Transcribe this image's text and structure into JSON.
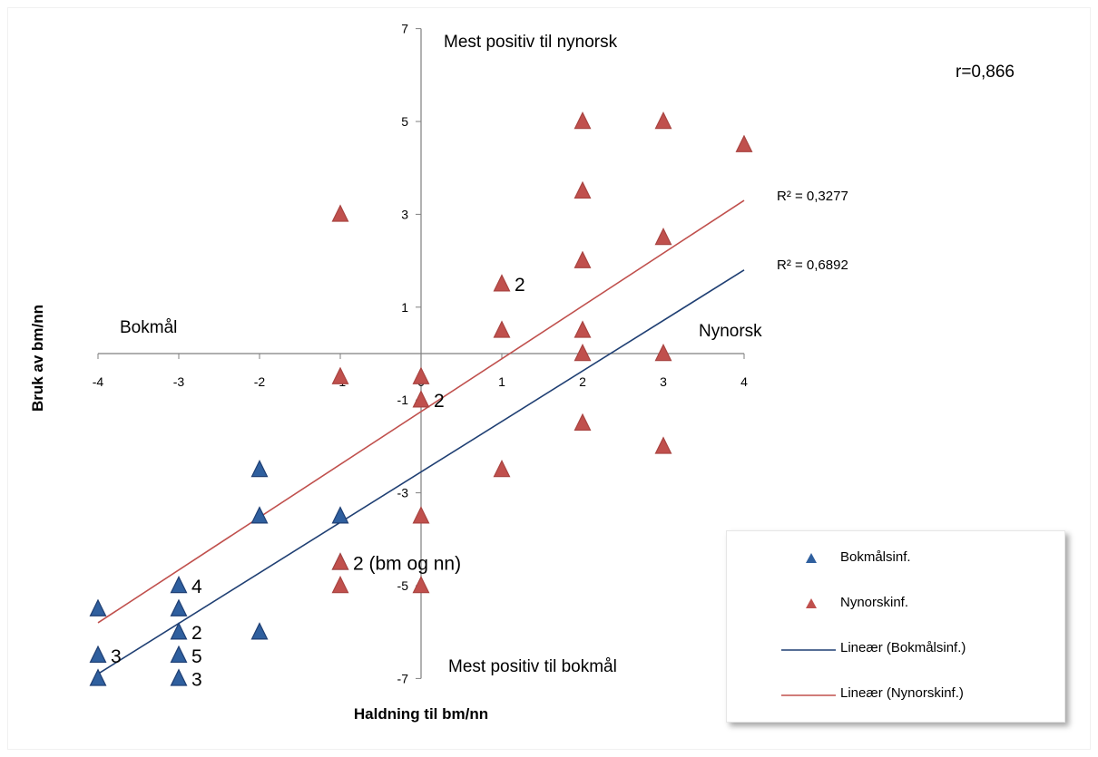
{
  "chart_data": {
    "type": "scatter",
    "title": "",
    "xlabel": "Haldning til bm/nn",
    "ylabel": "Bruk av bm/nn",
    "xlim": [
      -4,
      4
    ],
    "ylim": [
      -7,
      7
    ],
    "xticks": [
      -4,
      -3,
      -2,
      -1,
      0,
      1,
      2,
      3,
      4
    ],
    "yticks": [
      -7,
      -5,
      -3,
      -1,
      1,
      3,
      5,
      7
    ],
    "grid": false,
    "legend_position": "bottom-right",
    "annotation_r": "r=0,866",
    "quadrant_labels": {
      "top": "Mest positiv til nynorsk",
      "bottom": "Mest positiv til bokmål",
      "left": "Bokmål",
      "right": "Nynorsk"
    },
    "series": [
      {
        "name": "Bokmålsinf.",
        "color": "#2f5f9e",
        "points": [
          {
            "x": -4,
            "y": -5.5
          },
          {
            "x": -4,
            "y": -6.5
          },
          {
            "x": -4,
            "y": -7
          },
          {
            "x": -3,
            "y": -5
          },
          {
            "x": -3,
            "y": -5.5
          },
          {
            "x": -3,
            "y": -6
          },
          {
            "x": -3,
            "y": -6.5
          },
          {
            "x": -3,
            "y": -7
          },
          {
            "x": -2,
            "y": -2.5
          },
          {
            "x": -2,
            "y": -3.5
          },
          {
            "x": -2,
            "y": -6
          },
          {
            "x": -1,
            "y": -3.5
          },
          {
            "x": -1,
            "y": -4.5
          }
        ]
      },
      {
        "name": "Nynorskinf.",
        "color": "#c0504d",
        "points": [
          {
            "x": -1,
            "y": 3
          },
          {
            "x": -1,
            "y": -0.5
          },
          {
            "x": -1,
            "y": -4.5
          },
          {
            "x": -1,
            "y": -5
          },
          {
            "x": 0,
            "y": -0.5
          },
          {
            "x": 0,
            "y": -1
          },
          {
            "x": 0,
            "y": -3.5
          },
          {
            "x": 0,
            "y": -5
          },
          {
            "x": 1,
            "y": 1.5
          },
          {
            "x": 1,
            "y": 0.5
          },
          {
            "x": 1,
            "y": -2.5
          },
          {
            "x": 2,
            "y": 5
          },
          {
            "x": 2,
            "y": 3.5
          },
          {
            "x": 2,
            "y": 2
          },
          {
            "x": 2,
            "y": 0.5
          },
          {
            "x": 2,
            "y": 0
          },
          {
            "x": 2,
            "y": -1.5
          },
          {
            "x": 3,
            "y": 5
          },
          {
            "x": 3,
            "y": 2.5
          },
          {
            "x": 3,
            "y": 0
          },
          {
            "x": 3,
            "y": -2
          },
          {
            "x": 4,
            "y": 4.5
          }
        ]
      }
    ],
    "trendlines": [
      {
        "name": "Lineær (Bokmålsinf.)",
        "color": "#1f3f73",
        "from": {
          "x": -4,
          "y": -6.9
        },
        "to": {
          "x": 4,
          "y": 1.8
        },
        "r2_label": "R² = 0,6892"
      },
      {
        "name": "Lineær (Nynorskinf.)",
        "color": "#c0504d",
        "from": {
          "x": -4,
          "y": -5.8
        },
        "to": {
          "x": 4,
          "y": 3.3
        },
        "r2_label": "R² = 0,3277"
      }
    ],
    "point_labels": [
      {
        "x": 1,
        "y": 1.5,
        "text": "2"
      },
      {
        "x": 0,
        "y": -1,
        "text": "2"
      },
      {
        "x": -1,
        "y": -4.5,
        "text": "2 (bm og nn)"
      },
      {
        "x": -3,
        "y": -5,
        "text": "4"
      },
      {
        "x": -3,
        "y": -6,
        "text": "2"
      },
      {
        "x": -3,
        "y": -6.5,
        "text": "5"
      },
      {
        "x": -3,
        "y": -7,
        "text": "3"
      },
      {
        "x": -4,
        "y": -6.5,
        "text": "3"
      }
    ],
    "legend": [
      {
        "label": "Bokmålsinf.",
        "kind": "triangle",
        "color": "#2f5f9e"
      },
      {
        "label": "Nynorskinf.",
        "kind": "triangle",
        "color": "#c0504d"
      },
      {
        "label": "Lineær (Bokmålsinf.)",
        "kind": "line",
        "color": "#1f3f73"
      },
      {
        "label": "Lineær (Nynorskinf.)",
        "kind": "line",
        "color": "#c0504d"
      }
    ]
  }
}
